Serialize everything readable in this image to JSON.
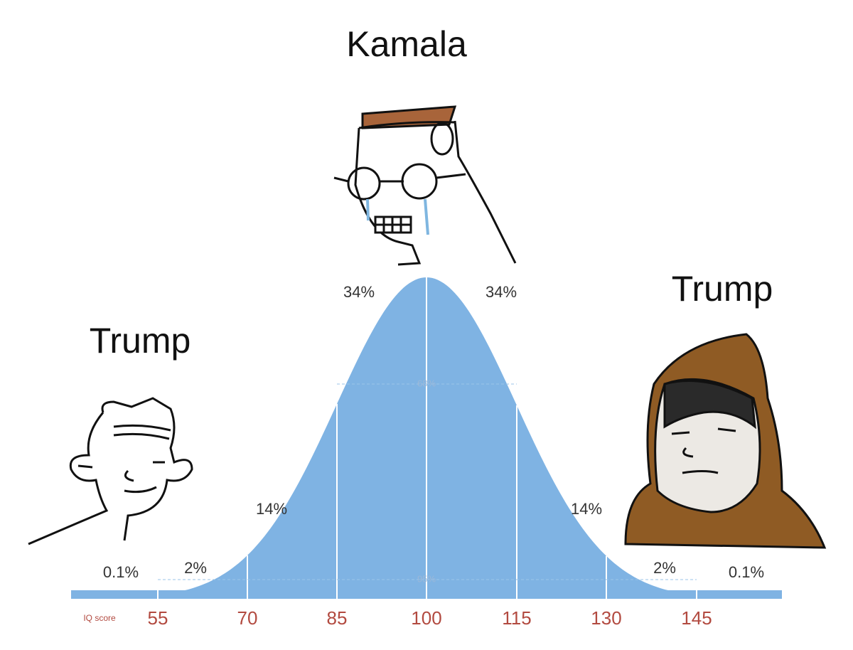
{
  "labels": {
    "top": "Kamala",
    "left": "Trump",
    "right": "Trump"
  },
  "curve": {
    "axis_title": "IQ score",
    "ticks": [
      "55",
      "70",
      "85",
      "100",
      "115",
      "130",
      "145"
    ],
    "segment_labels": [
      "0.1%",
      "2%",
      "14%",
      "34%",
      "34%",
      "14%",
      "2%",
      "0.1%"
    ],
    "inner_labels": [
      "68%",
      "95%"
    ]
  }
}
